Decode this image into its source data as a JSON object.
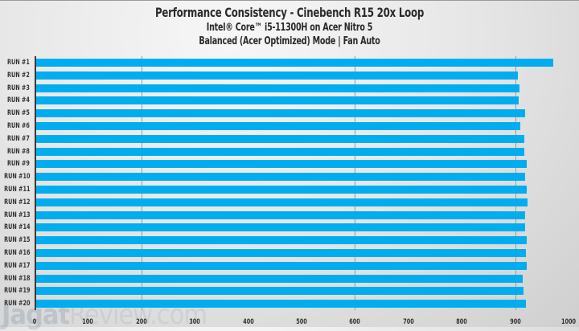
{
  "chart_data": {
    "type": "bar",
    "orientation": "horizontal",
    "title": "Performance Consistency - Cinebench R15 20x Loop",
    "subtitle": "Intel® Core™ i5-11300H on Acer Nitro 5",
    "subtitle2": "Balanced (Acer Optimized) Mode | Fan Auto",
    "xlabel": "",
    "ylabel": "",
    "xlim": [
      0,
      1000
    ],
    "xticks": [
      0,
      100,
      200,
      300,
      400,
      500,
      600,
      700,
      800,
      900,
      1000
    ],
    "gridlines": [
      200,
      600,
      900
    ],
    "bar_color": "#00aeef",
    "categories": [
      "RUN #1",
      "RUN #2",
      "RUN #3",
      "RUN #4",
      "RUN #5",
      "RUN #6",
      "RUN #7",
      "RUN #8",
      "RUN #9",
      "RUN #10",
      "RUN #11",
      "RUN #12",
      "RUN #13",
      "RUN #14",
      "RUN #15",
      "RUN #16",
      "RUN #17",
      "RUN #18",
      "RUN #19",
      "RUN #20"
    ],
    "values": [
      972,
      905,
      908,
      907,
      919,
      910,
      917,
      917,
      921,
      918,
      921,
      923,
      918,
      918,
      921,
      920,
      922,
      914,
      916,
      920
    ],
    "data_labels": true,
    "legend": null
  },
  "header": {
    "title": "Performance Consistency - Cinebench R15 20x Loop",
    "subtitle": "Intel® Core™ i5-11300H on Acer Nitro 5",
    "subtitle2": "Balanced (Acer Optimized) Mode | Fan Auto"
  },
  "watermark": {
    "main": "Jagat",
    "secondary": "Review.com"
  }
}
